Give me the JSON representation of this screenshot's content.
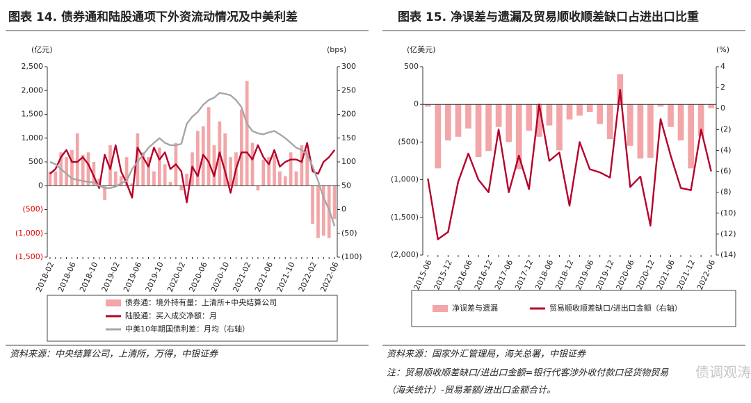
{
  "chart_data": [
    {
      "type": "bar_line",
      "title": "图表 14. 债券通和陆股通项下外资流动情况及中美利差",
      "y_unit": "(亿元)",
      "y2_unit": "(bps)",
      "categories": [
        "2018-02",
        null,
        null,
        null,
        "2018-06",
        null,
        null,
        null,
        "2018-10",
        null,
        null,
        null,
        "2019-02",
        null,
        null,
        null,
        "2019-06",
        null,
        null,
        null,
        "2019-10",
        null,
        null,
        null,
        "2020-02",
        null,
        null,
        null,
        "2020-06",
        null,
        null,
        null,
        "2020-10",
        null,
        null,
        null,
        "2021-02",
        null,
        null,
        null,
        "2021-06",
        null,
        null,
        null,
        "2021-10",
        null,
        null,
        null,
        "2022-02",
        null,
        null,
        null,
        "2022-06"
      ],
      "series": [
        {
          "name": "债券通：境外持有量：上清所+中央结算公司",
          "type": "bar",
          "color": "#f2a6a8",
          "values": [
            300,
            300,
            700,
            600,
            750,
            1100,
            650,
            700,
            500,
            150,
            -300,
            850,
            300,
            200,
            600,
            50,
            1100,
            700,
            600,
            300,
            800,
            450,
            80,
            900,
            -100,
            250,
            700,
            1150,
            1250,
            1650,
            850,
            1350,
            1100,
            600,
            700,
            1600,
            2200,
            900,
            -100,
            550,
            600,
            650,
            300,
            200,
            700,
            300,
            850,
            750,
            -800,
            -1100,
            -1050,
            -1100,
            -700
          ]
        },
        {
          "name": "陆股通：买入成交净额：月",
          "type": "line",
          "color": "#b5002a",
          "values": [
            250,
            350,
            600,
            750,
            500,
            500,
            600,
            450,
            200,
            -50,
            650,
            350,
            850,
            300,
            50,
            -250,
            800,
            600,
            400,
            800,
            550,
            700,
            350,
            450,
            300,
            -350,
            400,
            200,
            650,
            500,
            200,
            700,
            300,
            -150,
            350,
            700,
            700,
            550,
            850,
            600,
            450,
            750,
            400,
            500,
            550,
            550,
            500,
            900,
            300,
            250,
            500,
            600,
            750
          ]
        },
        {
          "name": "中美10年期国债利差：月均（右轴）",
          "type": "line",
          "axis": "y2",
          "color": "#a6a6a6",
          "values": [
            100,
            95,
            85,
            75,
            65,
            62,
            60,
            58,
            57,
            50,
            45,
            45,
            48,
            55,
            60,
            85,
            100,
            115,
            130,
            140,
            150,
            140,
            135,
            135,
            138,
            180,
            195,
            205,
            220,
            230,
            235,
            245,
            243,
            240,
            230,
            215,
            180,
            165,
            160,
            158,
            162,
            165,
            158,
            150,
            140,
            130,
            125,
            115,
            90,
            60,
            25,
            0,
            -35
          ]
        }
      ],
      "ylim": [
        -1500,
        2500
      ],
      "yticks": [
        {
          "value": 2500,
          "label": "2,500"
        },
        {
          "value": 2000,
          "label": "2,000"
        },
        {
          "value": 1500,
          "label": "1,500"
        },
        {
          "value": 1000,
          "label": "1,000"
        },
        500,
        0,
        {
          "value": -500,
          "label": "(500)"
        },
        {
          "value": -1000,
          "label": "(1,000)"
        },
        {
          "value": -1500,
          "label": "(1,500)"
        }
      ],
      "ytick_negative_color": "#e00000",
      "y2lim": [
        -100,
        300
      ],
      "y2ticks": [
        300,
        250,
        200,
        150,
        100,
        50,
        0,
        {
          "value": -50,
          "label": "(50)"
        },
        {
          "value": -100,
          "label": "(100)"
        }
      ],
      "source": "资料来源：中央结算公司，上清所，万得，中银证券"
    },
    {
      "type": "bar_line",
      "title": "图表 15. 净误差与遗漏及贸易顺收顺差缺口占进出口比重",
      "y_unit": "(亿美元)",
      "y2_unit": "(%)",
      "categories": [
        "2015-06",
        null,
        "2015-12",
        null,
        "2016-06",
        null,
        "2016-12",
        null,
        "2017-06",
        null,
        "2017-12",
        null,
        "2018-06",
        null,
        "2018-12",
        null,
        "2019-06",
        null,
        "2019-12",
        null,
        "2020-06",
        null,
        "2020-12",
        null,
        "2021-06",
        null,
        "2021-12",
        null,
        "2022-06"
      ],
      "series": [
        {
          "name": "净误差与遗漏",
          "type": "bar",
          "color": "#f2a6a8",
          "values": [
            -30,
            -850,
            -480,
            -430,
            -320,
            -700,
            -620,
            -300,
            -500,
            -860,
            -350,
            -430,
            -280,
            -610,
            -200,
            -150,
            -100,
            -260,
            -460,
            400,
            -550,
            -720,
            -710,
            -30,
            -300,
            -480,
            -850,
            -420,
            -50
          ]
        },
        {
          "name": "贸易顺收顺差缺口/进出口金额（右轴）",
          "type": "line",
          "axis": "y2",
          "color": "#b5002a",
          "values": [
            -6.7,
            -12.5,
            -11.8,
            -7,
            -4.3,
            -6.8,
            -8,
            -2,
            -8,
            -4.5,
            -7.7,
            0.4,
            -5,
            -4.2,
            -9.3,
            -3.2,
            -5.8,
            -6.1,
            -6.6,
            1.8,
            -7.5,
            -6.5,
            -11.2,
            -1,
            -4.5,
            -7.6,
            -7.8,
            -2,
            -6
          ]
        }
      ],
      "ylim": [
        -2000,
        500
      ],
      "yticks": [
        500,
        0,
        {
          "value": -500,
          "label": "(500)"
        },
        {
          "value": -1000,
          "label": "(1,000)"
        },
        {
          "value": -1500,
          "label": "(1,500)"
        },
        {
          "value": -2000,
          "label": "(2,000)"
        }
      ],
      "y2lim": [
        -14,
        4
      ],
      "y2ticks": [
        4,
        2,
        0,
        {
          "value": -2,
          "label": "(2)"
        },
        {
          "value": -4,
          "label": "(4)"
        },
        {
          "value": -6,
          "label": "(6)"
        },
        {
          "value": -8,
          "label": "(8)"
        },
        {
          "value": -10,
          "label": "(10)"
        },
        {
          "value": -12,
          "label": "(12)"
        },
        {
          "value": -14,
          "label": "(14)"
        }
      ],
      "source": "资料来源：国家外汇管理局，海关总署，中银证券",
      "note": [
        "注：贸易顺收顺差缺口/进出口金额=银行代客涉外收付款口径货物贸易",
        "（海关统计）-贸易差额/进出口金额合计。"
      ]
    }
  ],
  "watermark": "债调观涛"
}
